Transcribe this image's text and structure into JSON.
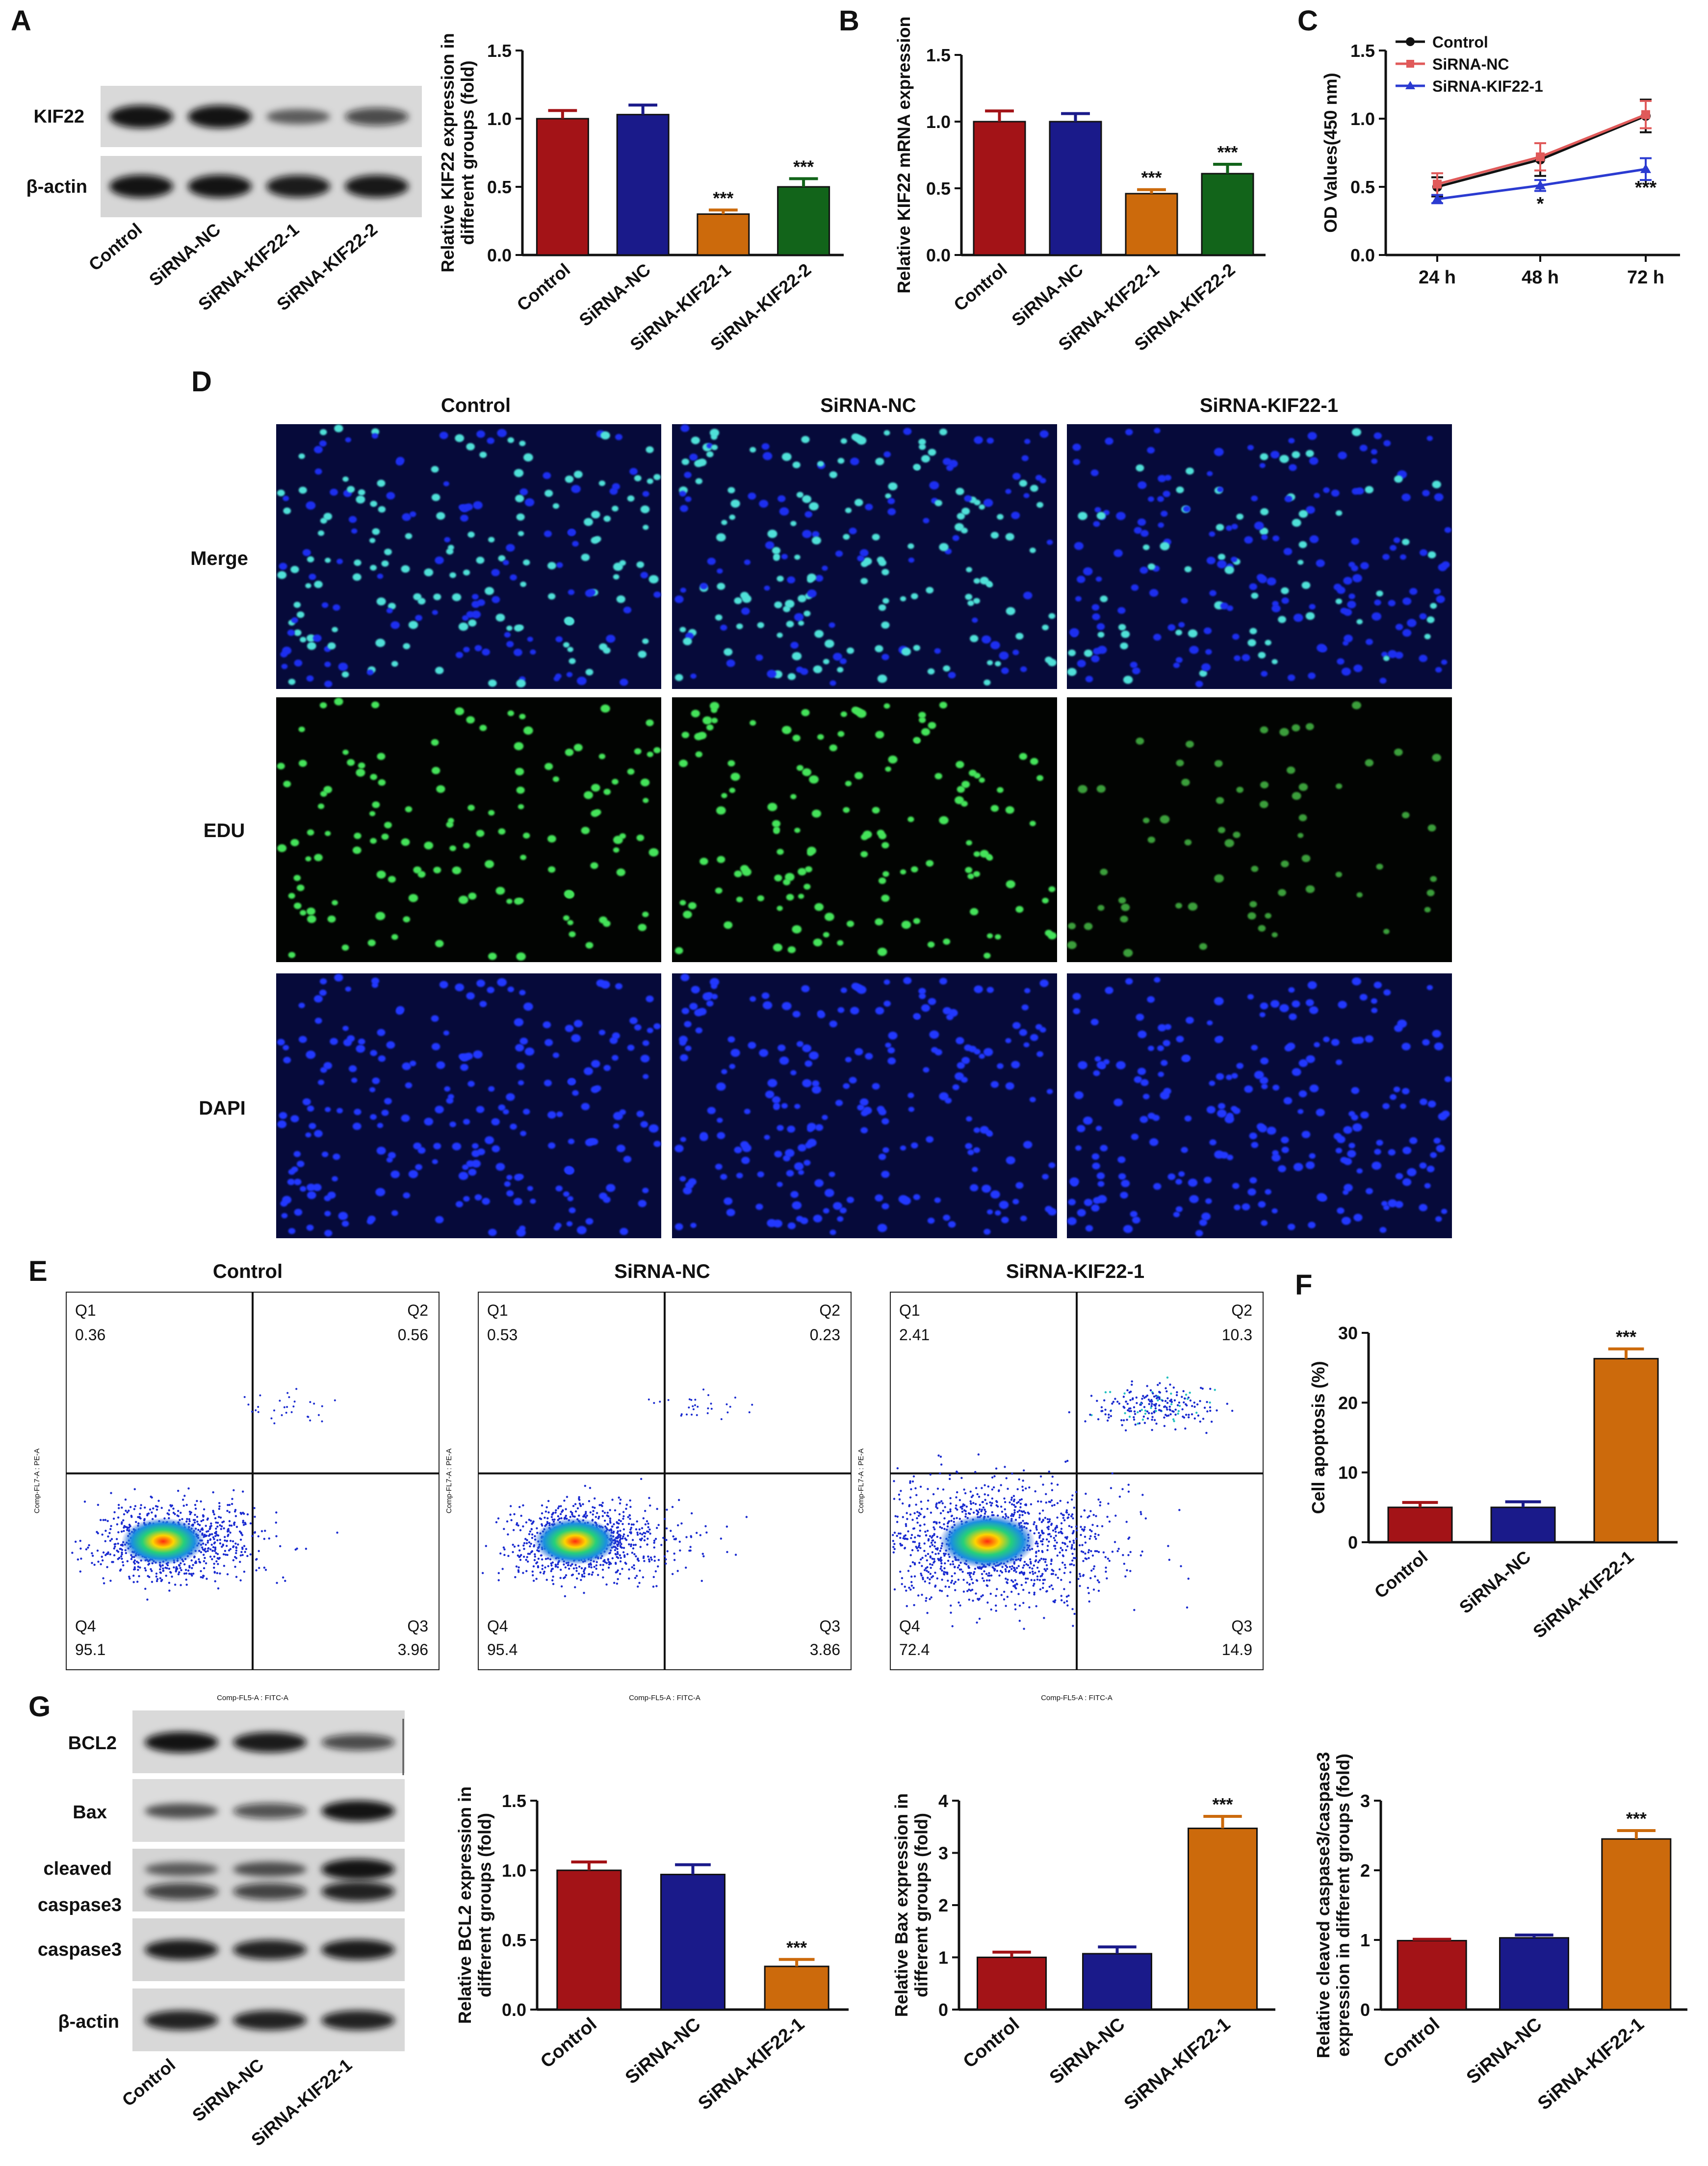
{
  "panels": {
    "A": "A",
    "B": "B",
    "C": "C",
    "D": "D",
    "E": "E",
    "F": "F",
    "G": "G"
  },
  "panel_A": {
    "blot_rows": [
      "KIF22",
      "β-actin"
    ],
    "blot_lanes": [
      "Control",
      "SiRNA-NC",
      "SiRNA-KIF22-1",
      "SiRNA-KIF22-2"
    ],
    "band_intensity": {
      "KIF22": [
        0.95,
        0.95,
        0.35,
        0.55
      ],
      "β-actin": [
        0.95,
        0.95,
        0.9,
        0.92
      ]
    }
  },
  "panel_D": {
    "columns": [
      "Control",
      "SiRNA-NC",
      "SiRNA-KIF22-1"
    ],
    "rows": [
      "Merge",
      "EDU",
      "DAPI"
    ],
    "edu_density": [
      0.55,
      0.6,
      0.25
    ]
  },
  "panel_E": {
    "plots": [
      {
        "title": "Control",
        "Q1": "0.36",
        "Q2": "0.56",
        "Q3": "3.96",
        "Q4": "95.1"
      },
      {
        "title": "SiRNA-NC",
        "Q1": "0.53",
        "Q2": "0.23",
        "Q3": "3.86",
        "Q4": "95.4"
      },
      {
        "title": "SiRNA-KIF22-1",
        "Q1": "2.41",
        "Q2": "10.3",
        "Q3": "14.9",
        "Q4": "72.4"
      }
    ],
    "quadrant_labels": [
      "Q1",
      "Q2",
      "Q3",
      "Q4"
    ],
    "x_axis": "Comp-FL5-A : FITC-A",
    "y_axis": "Comp-FL7-A : PE-A"
  },
  "panel_G": {
    "blot_rows": [
      "BCL2",
      "Bax",
      "cleaved",
      "caspase3",
      "caspase3",
      "β-actin"
    ],
    "blot_lanes": [
      "Control",
      "SiRNA-NC",
      "SiRNA-KIF22-1"
    ],
    "band_intensity": {
      "BCL2": [
        0.95,
        0.9,
        0.55
      ],
      "Bax": [
        0.45,
        0.5,
        0.95
      ],
      "cleaved_top": [
        0.35,
        0.45,
        0.95
      ],
      "cleaved_bottom": [
        0.6,
        0.6,
        0.85
      ],
      "caspase3": [
        0.9,
        0.85,
        0.9
      ],
      "β-actin": [
        0.85,
        0.85,
        0.85
      ]
    }
  },
  "colors": {
    "control": "#a31317",
    "sirna_nc": "#1a1a8a",
    "kif22_1": "#cc6a0c",
    "kif22_2": "#12641a",
    "line_control": "#111111",
    "line_nc": "#e05a5a",
    "line_kif22": "#2b3bd1"
  },
  "chart_data": [
    {
      "id": "A-bar",
      "type": "bar",
      "categories": [
        "Control",
        "SiRNA-NC",
        "SiRNA-KIF22-1",
        "SiRNA-KIF22-2"
      ],
      "values": [
        1.0,
        1.03,
        0.3,
        0.5
      ],
      "errors": [
        0.06,
        0.07,
        0.03,
        0.06
      ],
      "annotations": [
        "",
        "",
        "***",
        "***"
      ],
      "ylabel": "Relative KIF22 expression in different groups (fold)",
      "ylim": [
        0,
        1.5
      ],
      "yticks": [
        "0.0",
        "0.5",
        "1.0",
        "1.5"
      ]
    },
    {
      "id": "B-bar",
      "type": "bar",
      "categories": [
        "Control",
        "SiRNA-NC",
        "SiRNA-KIF22-1",
        "SiRNA-KIF22-2"
      ],
      "values": [
        1.0,
        1.0,
        0.46,
        0.61
      ],
      "errors": [
        0.08,
        0.06,
        0.03,
        0.07
      ],
      "annotations": [
        "",
        "",
        "***",
        "***"
      ],
      "ylabel": "Relative KIF22 mRNA expression",
      "ylim": [
        0,
        1.5
      ],
      "yticks": [
        "0.0",
        "0.5",
        "1.0",
        "1.5"
      ]
    },
    {
      "id": "C-line",
      "type": "line",
      "categories": [
        "24 h",
        "48 h",
        "72 h"
      ],
      "series": [
        {
          "name": "Control",
          "values": [
            0.5,
            0.7,
            1.02
          ],
          "errors": [
            0.07,
            0.12,
            0.12
          ]
        },
        {
          "name": "SiRNA-NC",
          "values": [
            0.52,
            0.72,
            1.03
          ],
          "errors": [
            0.08,
            0.1,
            0.1
          ]
        },
        {
          "name": "SiRNA-KIF22-1",
          "values": [
            0.41,
            0.51,
            0.63
          ],
          "errors": [
            0.03,
            0.04,
            0.08
          ]
        }
      ],
      "annotations": [
        "",
        "*",
        "***"
      ],
      "ylabel": "OD Values(450 nm)",
      "ylim": [
        0,
        1.5
      ],
      "yticks": [
        "0.0",
        "0.5",
        "1.0",
        "1.5"
      ],
      "legend": "top-left"
    },
    {
      "id": "F-bar",
      "type": "bar",
      "categories": [
        "Control",
        "SiRNA-NC",
        "SiRNA-KIF22-1"
      ],
      "values": [
        5.0,
        5.0,
        26.3
      ],
      "errors": [
        0.7,
        0.8,
        1.4
      ],
      "annotations": [
        "",
        "",
        "***"
      ],
      "ylabel": "Cell apoptosis (%)",
      "ylim": [
        0,
        30
      ],
      "yticks": [
        "0",
        "10",
        "20",
        "30"
      ]
    },
    {
      "id": "G-bcl2",
      "type": "bar",
      "categories": [
        "Control",
        "SiRNA-NC",
        "SiRNA-KIF22-1"
      ],
      "values": [
        1.0,
        0.97,
        0.31
      ],
      "errors": [
        0.06,
        0.07,
        0.05
      ],
      "annotations": [
        "",
        "",
        "***"
      ],
      "ylabel": "Relative BCL2 expression in different groups (fold)",
      "ylim": [
        0,
        1.5
      ],
      "yticks": [
        "0.0",
        "0.5",
        "1.0",
        "1.5"
      ]
    },
    {
      "id": "G-bax",
      "type": "bar",
      "categories": [
        "Control",
        "SiRNA-NC",
        "SiRNA-KIF22-1"
      ],
      "values": [
        1.0,
        1.07,
        3.47
      ],
      "errors": [
        0.1,
        0.13,
        0.23
      ],
      "annotations": [
        "",
        "",
        "***"
      ],
      "ylabel": "Relative Bax expression in different groups (fold)",
      "ylim": [
        0,
        4
      ],
      "yticks": [
        "0",
        "1",
        "2",
        "3",
        "4"
      ]
    },
    {
      "id": "G-casp",
      "type": "bar",
      "categories": [
        "Control",
        "SiRNA-NC",
        "SiRNA-KIF22-1"
      ],
      "values": [
        0.99,
        1.03,
        2.45
      ],
      "errors": [
        0.02,
        0.04,
        0.12
      ],
      "annotations": [
        "",
        "",
        "***"
      ],
      "ylabel": "Relative cleaved caspase3/caspase3 expression in different groups (fold)",
      "ylim": [
        0,
        3
      ],
      "yticks": [
        "0",
        "1",
        "2",
        "3"
      ]
    }
  ]
}
